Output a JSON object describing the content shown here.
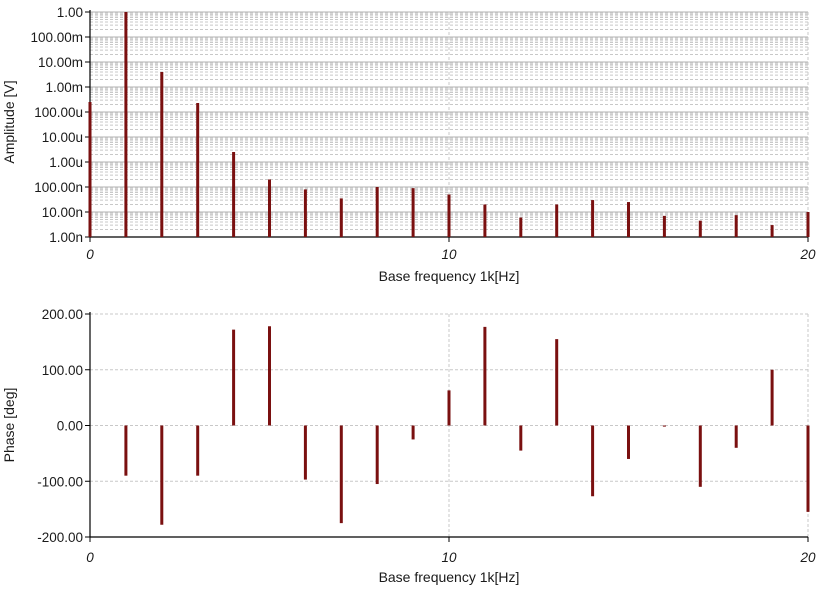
{
  "chart_data": [
    {
      "type": "bar",
      "subtype": "stem",
      "scale_y": "log",
      "xlabel": "Base frequency 1k[Hz]",
      "ylabel": "Amplitude [V]",
      "xlim": [
        0,
        20
      ],
      "ylim": [
        1e-09,
        1
      ],
      "x_ticks": [
        "0",
        "10",
        "20"
      ],
      "y_ticks": [
        "1.00n",
        "10.00n",
        "100.00n",
        "1.00u",
        "10.00u",
        "100.00u",
        "1.00m",
        "10.00m",
        "100.00m",
        "1.00"
      ],
      "grid": true,
      "color": "#7a1010",
      "x": [
        0,
        1,
        2,
        3,
        4,
        5,
        6,
        7,
        8,
        9,
        10,
        11,
        12,
        13,
        14,
        15,
        16,
        17,
        18,
        19,
        20
      ],
      "values": [
        0.00025,
        1.0,
        0.004,
        0.00023,
        2.5e-06,
        2e-07,
        8e-08,
        3.5e-08,
        1e-07,
        9e-08,
        5e-08,
        2e-08,
        6e-09,
        2e-08,
        3e-08,
        2.5e-08,
        7e-09,
        4.5e-09,
        7.5e-09,
        3e-09,
        1e-08
      ]
    },
    {
      "type": "bar",
      "subtype": "stem",
      "xlabel": "Base frequency 1k[Hz]",
      "ylabel": "Phase [deg]",
      "xlim": [
        0,
        20
      ],
      "ylim": [
        -200,
        200
      ],
      "x_ticks": [
        "0",
        "10",
        "20"
      ],
      "y_ticks": [
        "-200.00",
        "-100.00",
        "0.00",
        "100.00",
        "200.00"
      ],
      "grid": true,
      "color": "#7a1010",
      "x": [
        1,
        2,
        3,
        4,
        5,
        6,
        7,
        8,
        9,
        10,
        11,
        12,
        13,
        14,
        15,
        16,
        17,
        18,
        19,
        20
      ],
      "values": [
        -90,
        -178,
        -90,
        172,
        178,
        -97,
        -175,
        -105,
        -25,
        63,
        177,
        -45,
        155,
        -127,
        -60,
        -2,
        -110,
        -40,
        100,
        -155
      ]
    }
  ]
}
